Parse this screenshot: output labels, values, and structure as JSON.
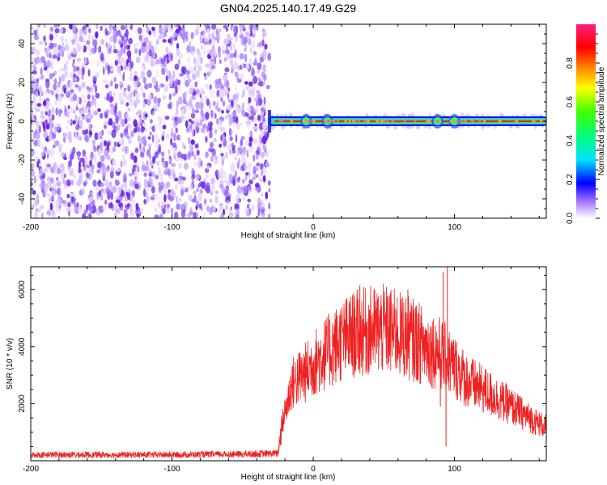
{
  "title": "GN04.2025.140.17.49.G29",
  "colors": {
    "snr_line": "#ee2222",
    "scatter_purple": "#6a1fe0",
    "band_core": "#ff2020"
  },
  "colorbar": {
    "label": "Normalized spectral amplitude",
    "range": [
      0,
      1
    ],
    "ticks": [
      "0.0",
      "0.2",
      "0.4",
      "0.6",
      "0.8"
    ],
    "tick_values": [
      0.0,
      0.2,
      0.4,
      0.6,
      0.8
    ]
  },
  "chart_data": [
    {
      "type": "heatmap",
      "title": "GN04.2025.140.17.49.G29",
      "xlabel": "Height of straight line (km)",
      "ylabel": "Frequency (Hz)",
      "xlim": [
        -200,
        165
      ],
      "ylim": [
        -50,
        50
      ],
      "x_ticks": [
        "-200",
        "-100",
        "0",
        "100"
      ],
      "x_tick_values": [
        -200,
        -100,
        0,
        100
      ],
      "y_ticks": [
        "-40",
        "-20",
        "0",
        "20",
        "40"
      ],
      "y_tick_values": [
        -40,
        -20,
        0,
        20,
        40
      ],
      "noise_region_x": [
        -200,
        -31
      ],
      "signal_band": {
        "x_start": -31,
        "x_end": 165,
        "frequency": 0,
        "bright_spots_x": [
          -5,
          10,
          88,
          100
        ]
      }
    },
    {
      "type": "line",
      "xlabel": "Height of straight line (km)",
      "ylabel": "SNR (10 * v/v)",
      "xlim": [
        -200,
        165
      ],
      "ylim": [
        0,
        6800
      ],
      "x_ticks": [
        "-200",
        "-100",
        "0",
        "100"
      ],
      "x_tick_values": [
        -200,
        -100,
        0,
        100
      ],
      "y_ticks": [
        "2000",
        "4000",
        "6000"
      ],
      "y_tick_values": [
        2000,
        4000,
        6000
      ],
      "envelope": {
        "x": [
          -200,
          -150,
          -100,
          -50,
          -25,
          -22,
          -15,
          -5,
          0,
          10,
          20,
          30,
          40,
          50,
          60,
          70,
          80,
          90,
          100,
          110,
          120,
          130,
          140,
          150,
          160,
          165
        ],
        "y": [
          200,
          200,
          200,
          220,
          240,
          1300,
          2700,
          3100,
          3400,
          3800,
          4200,
          4450,
          4550,
          4600,
          4450,
          4250,
          4000,
          3750,
          3300,
          2750,
          2500,
          2200,
          1900,
          1600,
          1300,
          1200
        ]
      },
      "spikes": [
        {
          "x": 33,
          "y": 6150
        },
        {
          "x": 67,
          "y": 6000
        },
        {
          "x": 92,
          "y": 6600
        },
        {
          "x": 95,
          "y": 6800
        },
        {
          "x": 94,
          "y": 500
        },
        {
          "x": 90,
          "y": 1900
        }
      ]
    }
  ]
}
